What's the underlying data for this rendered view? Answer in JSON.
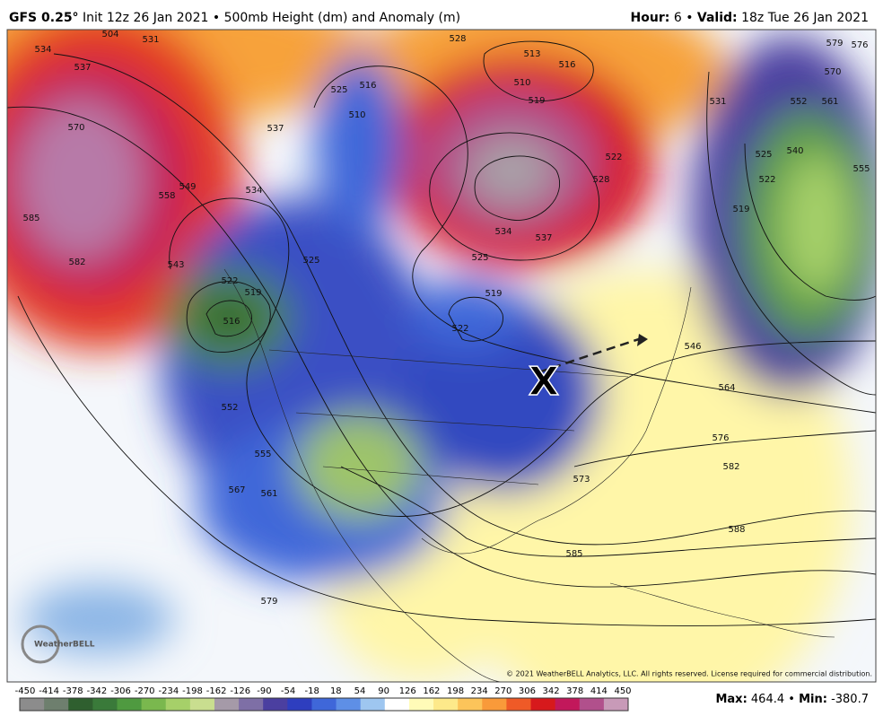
{
  "header": {
    "model": "GFS 0.25°",
    "init": "Init 12z 26 Jan 2021",
    "separator": "•",
    "product": "500mb Height (dm) and Anomaly (m)",
    "hour_label": "Hour:",
    "hour": 6,
    "valid_label": "Valid:",
    "valid": "18z Tue 26 Jan 2021"
  },
  "map": {
    "marker": "X",
    "logo": "WeatherBELL",
    "copyright": "© 2021 WeatherBELL Analytics, LLC. All rights reserved. License required for commercial distribution.",
    "contour_labels": [
      570,
      585,
      582,
      558,
      549,
      543,
      534,
      537,
      525,
      516,
      510,
      522,
      519,
      516,
      525,
      552,
      555,
      561,
      567,
      579,
      528,
      513,
      516,
      510,
      519,
      522,
      528,
      534,
      537,
      525,
      519,
      522,
      531,
      552,
      561,
      540,
      525,
      522,
      519,
      555,
      546,
      564,
      576,
      582,
      573,
      588,
      585,
      537,
      534,
      531,
      504,
      579,
      576,
      570
    ]
  },
  "colorbar": {
    "ticks": [
      -450,
      -414,
      -378,
      -342,
      -306,
      -270,
      -234,
      -198,
      -162,
      -126,
      -90,
      -54,
      -18,
      18,
      54,
      90,
      126,
      162,
      198,
      234,
      270,
      306,
      342,
      378,
      414,
      450
    ],
    "colors": [
      "#8c8c8c",
      "#6e7f6e",
      "#2f5f2f",
      "#3a7a3a",
      "#4f9a40",
      "#7ab84e",
      "#a6d069",
      "#c9de8f",
      "#a59aa8",
      "#7e6fa6",
      "#4b3fa0",
      "#2e3ebf",
      "#3f67d9",
      "#5e8fe6",
      "#9ec6f0",
      "#ffffff",
      "#fffbb8",
      "#fde98a",
      "#fcc45a",
      "#f99a3a",
      "#ef5a27",
      "#d7191c",
      "#c2185b",
      "#b1508c",
      "#c89ab8"
    ]
  },
  "footer": {
    "max_label": "Max:",
    "max": 464.4,
    "separator": "•",
    "min_label": "Min:",
    "min": -380.7
  }
}
